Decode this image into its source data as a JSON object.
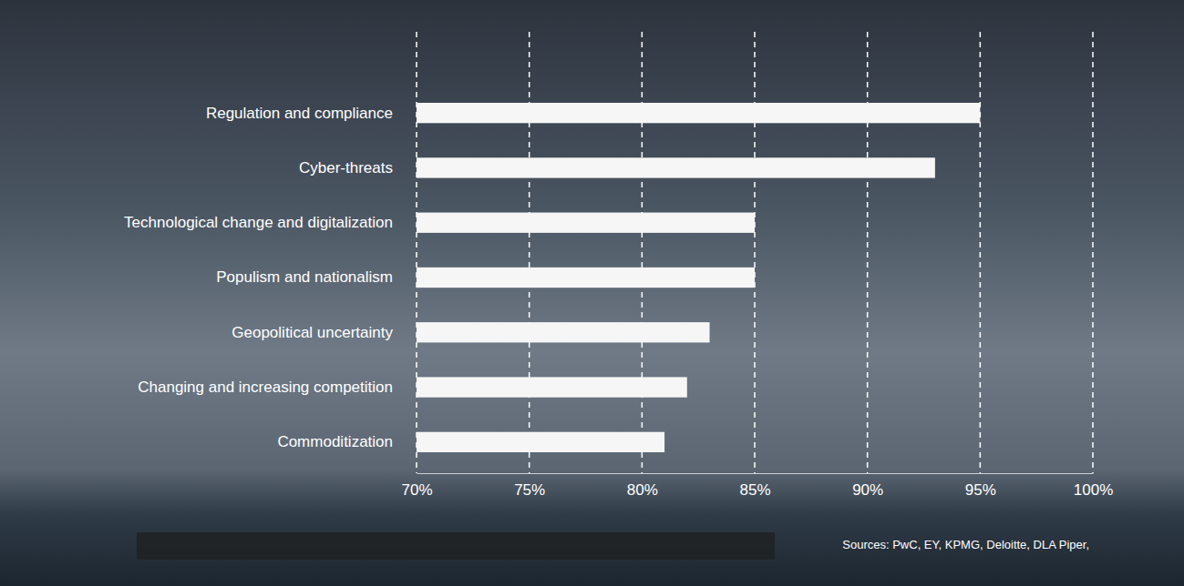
{
  "chart_data": {
    "type": "bar",
    "orientation": "horizontal",
    "grid": true,
    "color": "#f6f6f6",
    "categories": [
      "Regulation and compliance",
      "Cyber-threats",
      "Technological change and digitalization",
      "Populism and nationalism",
      "Geopolitical uncertainty",
      "Changing and increasing competition",
      "Commoditization"
    ],
    "values": [
      95,
      93,
      85,
      85,
      83,
      82,
      81
    ],
    "xlim": [
      70,
      100
    ],
    "xticks": [
      {
        "value": 70,
        "label": "70%"
      },
      {
        "value": 75,
        "label": "75%"
      },
      {
        "value": 80,
        "label": "80%"
      },
      {
        "value": 85,
        "label": "85%"
      },
      {
        "value": 90,
        "label": "90%"
      },
      {
        "value": 95,
        "label": "95%"
      },
      {
        "value": 100,
        "label": "100%"
      }
    ],
    "annotation": "Sources: PwC, EY, KPMG, Deloitte, DLA Piper,"
  }
}
